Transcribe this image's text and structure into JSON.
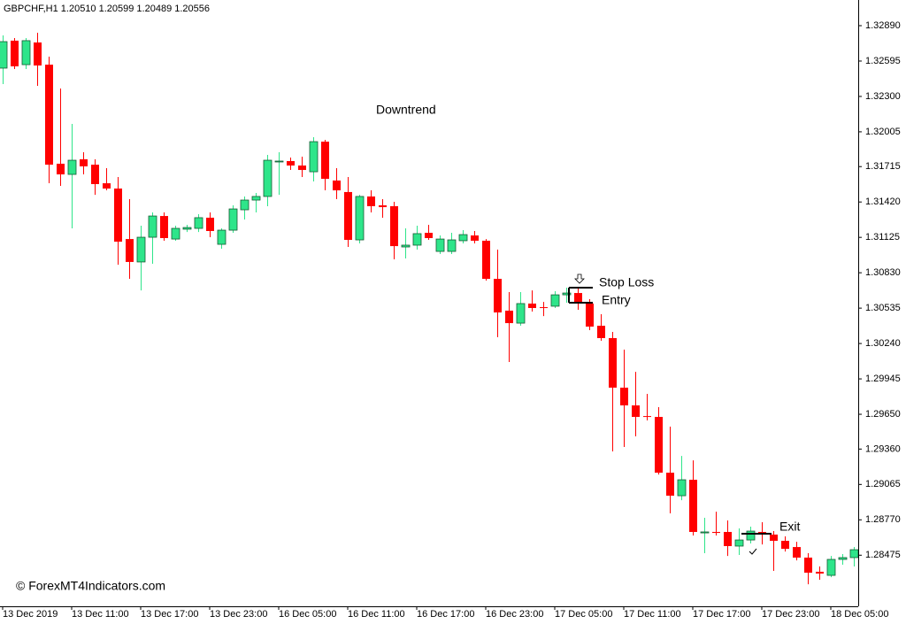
{
  "chart_data": {
    "type": "candlestick",
    "title": "GBPCHF,H1  1.20510 1.20599 1.20489 1.20556",
    "annotations": [
      "Downtrend",
      "Stop Loss",
      "Entry",
      "Exit"
    ],
    "copyright": "© ForexMT4Indicators.com",
    "up_color": "#2ee58a",
    "down_color": "#ff0000",
    "categories": [
      "13 Dec 2019",
      null,
      null,
      null,
      null,
      null,
      "13 Dec 11:00",
      null,
      null,
      null,
      null,
      null,
      "13 Dec 17:00",
      null,
      null,
      null,
      null,
      null,
      "13 Dec 23:00",
      null,
      null,
      null,
      null,
      null,
      "16 Dec 05:00",
      null,
      null,
      null,
      null,
      null,
      "16 Dec 11:00",
      null,
      null,
      null,
      null,
      null,
      "16 Dec 17:00",
      null,
      null,
      null,
      null,
      null,
      "16 Dec 23:00",
      null,
      null,
      null,
      null,
      null,
      "17 Dec 05:00",
      null,
      null,
      null,
      null,
      null,
      "17 Dec 11:00",
      null,
      null,
      null,
      null,
      null,
      "17 Dec 17:00",
      null,
      null,
      null,
      null,
      null,
      "17 Dec 23:00",
      null,
      null,
      null,
      null,
      null,
      "18 Dec 05:00",
      null,
      null
    ],
    "open": [
      1.32536,
      1.32765,
      1.32565,
      1.3275,
      1.32565,
      1.31739,
      1.3165,
      1.31776,
      1.31731,
      1.31576,
      1.31532,
      1.31111,
      1.3092,
      1.31126,
      1.31303,
      1.31111,
      1.31193,
      1.312,
      1.31289,
      1.31067,
      1.31185,
      1.31355,
      1.31436,
      1.31466,
      1.31754,
      1.31761,
      1.31724,
      1.31672,
      1.31923,
      1.31599,
      1.31503,
      1.31104,
      1.31466,
      1.31392,
      1.31385,
      1.31045,
      1.3106,
      1.31163,
      1.31008,
      1.31008,
      1.31097,
      1.31141,
      1.31097,
      1.30779,
      1.30514,
      1.3041,
      1.30573,
      1.30543,
      1.30551,
      1.30646,
      1.30661,
      1.30573,
      1.30388,
      1.30285,
      1.29872,
      1.29724,
      1.29635,
      1.29628,
      1.29163,
      1.28971,
      1.29104,
      1.28661,
      1.28669,
      1.28669,
      1.28551,
      1.28602,
      1.28669,
      1.28647,
      1.28595,
      1.28543,
      1.28455,
      1.28337,
      1.28307,
      1.2844,
      1.28455
    ],
    "high": [
      1.32809,
      1.32787,
      1.32787,
      1.32831,
      1.32632,
      1.32366,
      1.32071,
      1.31835,
      1.31776,
      1.31702,
      1.31628,
      1.31444,
      1.31222,
      1.31333,
      1.31333,
      1.31222,
      1.3123,
      1.31318,
      1.31333,
      1.312,
      1.31392,
      1.31466,
      1.31495,
      1.31813,
      1.31835,
      1.3179,
      1.31798,
      1.3196,
      1.31938,
      1.31702,
      1.31628,
      1.3148,
      1.31517,
      1.31444,
      1.31421,
      1.312,
      1.31222,
      1.3123,
      1.31141,
      1.31163,
      1.31185,
      1.31178,
      1.31111,
      1.31023,
      1.30669,
      1.30669,
      1.30683,
      1.30587,
      1.30676,
      1.30706,
      1.30706,
      1.3061,
      1.30484,
      1.30337,
      1.30189,
      1.30004,
      1.2982,
      1.29709,
      1.29547,
      1.29303,
      1.29266,
      1.28787,
      1.28838,
      1.28765,
      1.28698,
      1.28713,
      1.2875,
      1.28676,
      1.28632,
      1.28587,
      1.28492,
      1.28381,
      1.28469,
      1.28484,
      1.28543
    ],
    "low": [
      1.32403,
      1.32528,
      1.32528,
      1.32388,
      1.31576,
      1.31554,
      1.312,
      1.3165,
      1.3148,
      1.31517,
      1.30897,
      1.30779,
      1.30683,
      1.30905,
      1.31097,
      1.31097,
      1.3117,
      1.3117,
      1.31126,
      1.3103,
      1.31163,
      1.31274,
      1.31333,
      1.31385,
      1.3148,
      1.31687,
      1.31628,
      1.31591,
      1.31517,
      1.31444,
      1.31045,
      1.31075,
      1.31333,
      1.31289,
      1.30942,
      1.30949,
      1.31023,
      1.31104,
      1.30986,
      1.30986,
      1.31075,
      1.31075,
      1.30765,
      1.30292,
      1.30086,
      1.30388,
      1.30506,
      1.30469,
      1.30536,
      1.3058,
      1.30521,
      1.30351,
      1.30263,
      1.2934,
      1.29377,
      1.29466,
      1.29599,
      1.29148,
      1.28824,
      1.28934,
      1.28639,
      1.28492,
      1.28639,
      1.28469,
      1.28477,
      1.28573,
      1.28565,
      1.28344,
      1.28506,
      1.28432,
      1.28233,
      1.2827,
      1.28292,
      1.28396,
      1.28381
    ],
    "close": [
      1.32757,
      1.32551,
      1.32765,
      1.32558,
      1.31731,
      1.3165,
      1.31768,
      1.31717,
      1.31569,
      1.31532,
      1.31089,
      1.3092,
      1.31126,
      1.31303,
      1.31119,
      1.312,
      1.31207,
      1.31289,
      1.31178,
      1.31185,
      1.31362,
      1.31436,
      1.31466,
      1.31768,
      1.31761,
      1.31724,
      1.31687,
      1.31923,
      1.31613,
      1.31517,
      1.31104,
      1.31466,
      1.31385,
      1.31377,
      1.31052,
      1.3106,
      1.31156,
      1.31119,
      1.31111,
      1.31104,
      1.31148,
      1.31097,
      1.30779,
      1.30499,
      1.3041,
      1.30573,
      1.30536,
      1.30536,
      1.30646,
      1.30661,
      1.30573,
      1.30381,
      1.30285,
      1.29872,
      1.29724,
      1.29628,
      1.29628,
      1.29163,
      1.28971,
      1.29104,
      1.28669,
      1.28669,
      1.28661,
      1.28551,
      1.28602,
      1.28676,
      1.28647,
      1.28595,
      1.28528,
      1.28455,
      1.28329,
      1.28322,
      1.2844,
      1.28455,
      1.28521
    ],
    "ylim": [
      1.28049,
      1.33104
    ],
    "yticks": [
      {
        "value": 1.3289,
        "label": "1.32890"
      },
      {
        "value": 1.32595,
        "label": "1.32595"
      },
      {
        "value": 1.323,
        "label": "1.32300"
      },
      {
        "value": 1.32005,
        "label": "1.32005"
      },
      {
        "value": 1.31715,
        "label": "1.31715"
      },
      {
        "value": 1.3142,
        "label": "1.31420"
      },
      {
        "value": 1.31125,
        "label": "1.31125"
      },
      {
        "value": 1.3083,
        "label": "1.30830"
      },
      {
        "value": 1.30535,
        "label": "1.30535"
      },
      {
        "value": 1.3024,
        "label": "1.30240"
      },
      {
        "value": 1.29945,
        "label": "1.29945"
      },
      {
        "value": 1.2965,
        "label": "1.29650"
      },
      {
        "value": 1.2936,
        "label": "1.29360"
      },
      {
        "value": 1.29065,
        "label": "1.29065"
      },
      {
        "value": 1.2877,
        "label": "1.28770"
      },
      {
        "value": 1.28475,
        "label": "1.28475"
      }
    ]
  }
}
